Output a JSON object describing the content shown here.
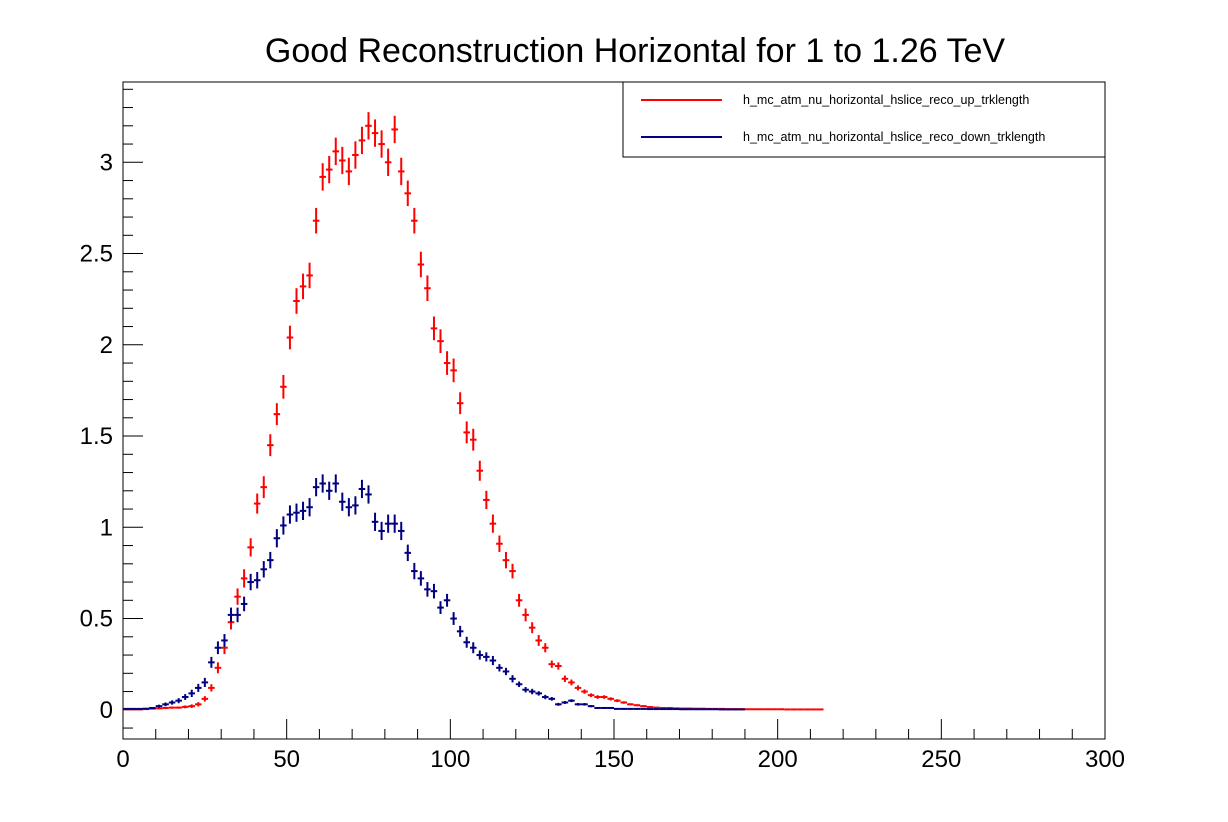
{
  "chart_data": {
    "type": "scatter",
    "title": "Good Reconstruction Horizontal for 1 to 1.26 TeV",
    "xlabel": "",
    "ylabel": "",
    "xlim": [
      0,
      300
    ],
    "ylim": [
      -0.16,
      3.44
    ],
    "x_ticks": [
      "0",
      "50",
      "100",
      "150",
      "200",
      "250",
      "300"
    ],
    "y_ticks": [
      "0",
      "0.5",
      "1",
      "1.5",
      "2",
      "2.5",
      "3"
    ],
    "grid": false,
    "legend_position": "top-right",
    "bin_width": 2,
    "series": [
      {
        "name": "h_mc_atm_nu_horizontal_hslice_reco_up_trklength",
        "color": "#ff0000",
        "x": [
          1,
          3,
          5,
          7,
          9,
          11,
          13,
          15,
          17,
          19,
          21,
          23,
          25,
          27,
          29,
          31,
          33,
          35,
          37,
          39,
          41,
          43,
          45,
          47,
          49,
          51,
          53,
          55,
          57,
          59,
          61,
          63,
          65,
          67,
          69,
          71,
          73,
          75,
          77,
          79,
          81,
          83,
          85,
          87,
          89,
          91,
          93,
          95,
          97,
          99,
          101,
          103,
          105,
          107,
          109,
          111,
          113,
          115,
          117,
          119,
          121,
          123,
          125,
          127,
          129,
          131,
          133,
          135,
          137,
          139,
          141,
          143,
          145,
          147,
          149,
          151,
          153,
          155,
          157,
          159,
          161,
          163,
          165,
          167,
          169,
          171,
          173,
          175,
          177,
          179,
          181,
          183,
          185,
          187,
          189,
          191,
          193,
          195,
          197,
          199,
          201,
          203,
          205,
          207,
          209,
          211,
          213
        ],
        "y": [
          0.003,
          0.003,
          0.003,
          0.004,
          0.006,
          0.008,
          0.01,
          0.012,
          0.012,
          0.016,
          0.02,
          0.03,
          0.06,
          0.12,
          0.23,
          0.34,
          0.48,
          0.62,
          0.72,
          0.89,
          1.13,
          1.22,
          1.45,
          1.62,
          1.77,
          2.04,
          2.24,
          2.32,
          2.38,
          2.68,
          2.92,
          2.96,
          3.06,
          3.01,
          2.95,
          3.04,
          3.12,
          3.2,
          3.16,
          3.1,
          3.0,
          3.18,
          2.95,
          2.83,
          2.68,
          2.44,
          2.31,
          2.09,
          2.02,
          1.9,
          1.86,
          1.68,
          1.52,
          1.48,
          1.31,
          1.15,
          1.02,
          0.91,
          0.82,
          0.76,
          0.6,
          0.52,
          0.45,
          0.38,
          0.34,
          0.25,
          0.24,
          0.17,
          0.15,
          0.12,
          0.1,
          0.08,
          0.07,
          0.07,
          0.06,
          0.05,
          0.04,
          0.03,
          0.025,
          0.02,
          0.015,
          0.012,
          0.01,
          0.01,
          0.008,
          0.007,
          0.007,
          0.006,
          0.006,
          0.005,
          0.005,
          0.005,
          0.004,
          0.004,
          0.004,
          0.003,
          0.003,
          0.003,
          0.003,
          0.003,
          0.003,
          0.002,
          0.002,
          0.002,
          0.002,
          0.002,
          0.002
        ],
        "err": [
          0.003,
          0.003,
          0.003,
          0.004,
          0.004,
          0.005,
          0.006,
          0.006,
          0.006,
          0.008,
          0.01,
          0.012,
          0.015,
          0.02,
          0.03,
          0.035,
          0.04,
          0.045,
          0.05,
          0.05,
          0.055,
          0.06,
          0.06,
          0.06,
          0.065,
          0.065,
          0.07,
          0.07,
          0.07,
          0.07,
          0.075,
          0.075,
          0.075,
          0.075,
          0.075,
          0.075,
          0.075,
          0.075,
          0.075,
          0.075,
          0.075,
          0.075,
          0.075,
          0.07,
          0.07,
          0.07,
          0.07,
          0.065,
          0.065,
          0.065,
          0.065,
          0.06,
          0.06,
          0.06,
          0.055,
          0.05,
          0.05,
          0.045,
          0.045,
          0.04,
          0.035,
          0.035,
          0.03,
          0.03,
          0.025,
          0.02,
          0.02,
          0.018,
          0.016,
          0.014,
          0.012,
          0.01,
          0.01,
          0.01,
          0.009,
          0.008,
          0.007,
          0.006,
          0.005,
          0.005,
          0.004,
          0.004,
          0.003,
          0.003,
          0.003,
          0.003,
          0.003,
          0.003,
          0.003,
          0.002,
          0.002,
          0.002,
          0.002,
          0.002,
          0.002,
          0.002,
          0.002,
          0.002,
          0.002,
          0.002,
          0.002,
          0.002,
          0.002,
          0.002,
          0.002,
          0.002,
          0.002
        ]
      },
      {
        "name": "h_mc_atm_nu_horizontal_hslice_reco_down_trklength",
        "color": "#000080",
        "x": [
          1,
          3,
          5,
          7,
          9,
          11,
          13,
          15,
          17,
          19,
          21,
          23,
          25,
          27,
          29,
          31,
          33,
          35,
          37,
          39,
          41,
          43,
          45,
          47,
          49,
          51,
          53,
          55,
          57,
          59,
          61,
          63,
          65,
          67,
          69,
          71,
          73,
          75,
          77,
          79,
          81,
          83,
          85,
          87,
          89,
          91,
          93,
          95,
          97,
          99,
          101,
          103,
          105,
          107,
          109,
          111,
          113,
          115,
          117,
          119,
          121,
          123,
          125,
          127,
          129,
          131,
          133,
          135,
          137,
          139,
          141,
          143,
          145,
          147,
          149,
          151,
          153,
          155,
          157,
          159,
          161,
          163,
          165,
          167,
          169,
          171,
          173,
          175,
          177,
          179,
          181,
          183,
          185,
          187,
          189
        ],
        "y": [
          0.005,
          0.005,
          0.005,
          0.006,
          0.01,
          0.02,
          0.03,
          0.04,
          0.05,
          0.07,
          0.09,
          0.12,
          0.15,
          0.26,
          0.34,
          0.38,
          0.52,
          0.52,
          0.58,
          0.7,
          0.71,
          0.77,
          0.82,
          0.94,
          1.01,
          1.07,
          1.08,
          1.09,
          1.11,
          1.22,
          1.24,
          1.2,
          1.24,
          1.14,
          1.11,
          1.12,
          1.21,
          1.18,
          1.03,
          0.98,
          1.02,
          1.02,
          0.98,
          0.86,
          0.76,
          0.72,
          0.66,
          0.65,
          0.56,
          0.6,
          0.5,
          0.43,
          0.37,
          0.34,
          0.3,
          0.29,
          0.27,
          0.23,
          0.21,
          0.17,
          0.14,
          0.11,
          0.1,
          0.09,
          0.07,
          0.06,
          0.03,
          0.04,
          0.05,
          0.03,
          0.03,
          0.02,
          0.01,
          0.01,
          0.01,
          0.005,
          0.005,
          0.005,
          0.005,
          0.005,
          0.004,
          0.004,
          0.004,
          0.004,
          0.004,
          0.003,
          0.003,
          0.003,
          0.003,
          0.003,
          0.003,
          0.002,
          0.002,
          0.002,
          0.002
        ],
        "err": [
          0.003,
          0.003,
          0.003,
          0.004,
          0.005,
          0.008,
          0.01,
          0.012,
          0.014,
          0.016,
          0.02,
          0.022,
          0.025,
          0.03,
          0.035,
          0.035,
          0.04,
          0.04,
          0.04,
          0.045,
          0.045,
          0.045,
          0.045,
          0.05,
          0.05,
          0.05,
          0.05,
          0.05,
          0.05,
          0.05,
          0.05,
          0.05,
          0.05,
          0.05,
          0.05,
          0.05,
          0.05,
          0.05,
          0.05,
          0.05,
          0.05,
          0.05,
          0.05,
          0.045,
          0.045,
          0.04,
          0.04,
          0.04,
          0.035,
          0.035,
          0.035,
          0.03,
          0.03,
          0.03,
          0.025,
          0.025,
          0.025,
          0.02,
          0.02,
          0.02,
          0.015,
          0.015,
          0.015,
          0.012,
          0.012,
          0.01,
          0.008,
          0.008,
          0.008,
          0.007,
          0.007,
          0.006,
          0.005,
          0.005,
          0.005,
          0.004,
          0.004,
          0.004,
          0.004,
          0.004,
          0.003,
          0.003,
          0.003,
          0.003,
          0.003,
          0.003,
          0.003,
          0.003,
          0.003,
          0.003,
          0.003,
          0.002,
          0.002,
          0.002,
          0.002
        ]
      }
    ]
  }
}
